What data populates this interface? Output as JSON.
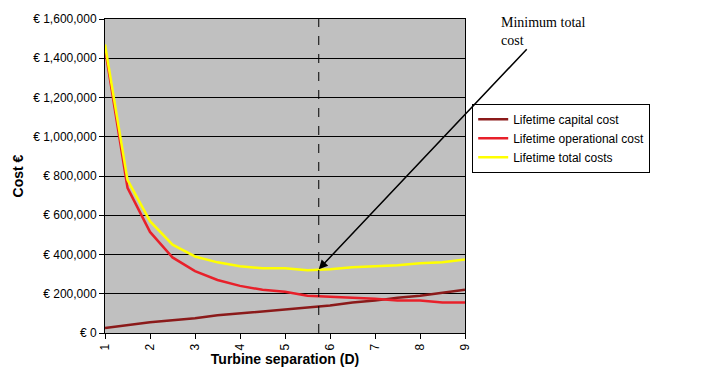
{
  "chart_data": {
    "type": "line",
    "x_label": "Turbine separation (D)",
    "y_label": "Cost €",
    "x": [
      1,
      1.5,
      2,
      2.5,
      3,
      3.5,
      4,
      4.5,
      5,
      5.5,
      6,
      6.5,
      7,
      7.5,
      8,
      8.5,
      9
    ],
    "series": [
      {
        "name": "Lifetime capital cost",
        "color": "#8b1a1a",
        "values": [
          25000,
          40000,
          55000,
          65000,
          75000,
          90000,
          100000,
          110000,
          120000,
          130000,
          140000,
          155000,
          165000,
          180000,
          190000,
          205000,
          220000
        ]
      },
      {
        "name": "Lifetime operational cost",
        "color": "#e8202a",
        "values": [
          1450000,
          740000,
          515000,
          385000,
          315000,
          270000,
          240000,
          220000,
          210000,
          190000,
          185000,
          180000,
          175000,
          165000,
          165000,
          155000,
          155000
        ]
      },
      {
        "name": "Lifetime total costs",
        "color": "#ffff00",
        "values": [
          1470000,
          780000,
          570000,
          450000,
          390000,
          360000,
          340000,
          330000,
          330000,
          320000,
          325000,
          335000,
          340000,
          345000,
          355000,
          360000,
          375000
        ]
      }
    ],
    "xlim": [
      1,
      9
    ],
    "xticks": [
      1,
      2,
      3,
      4,
      5,
      6,
      7,
      8,
      9
    ],
    "ylim": [
      0,
      1600000
    ],
    "yticks": [
      {
        "value": 0,
        "label": "€ 0"
      },
      {
        "value": 200000,
        "label": "€ 200,000"
      },
      {
        "value": 400000,
        "label": "€ 400,000"
      },
      {
        "value": 600000,
        "label": "€ 600,000"
      },
      {
        "value": 800000,
        "label": "€ 800,000"
      },
      {
        "value": 1000000,
        "label": "€ 1,000,000"
      },
      {
        "value": 1200000,
        "label": "€ 1,200,000"
      },
      {
        "value": 1400000,
        "label": "€ 1,400,000"
      },
      {
        "value": 1600000,
        "label": "€ 1,600,000"
      }
    ],
    "annotations": [
      {
        "text": [
          "Minimum total",
          "cost"
        ],
        "x": 5.75,
        "y": 325000
      }
    ],
    "grid": true,
    "legend": "right"
  }
}
